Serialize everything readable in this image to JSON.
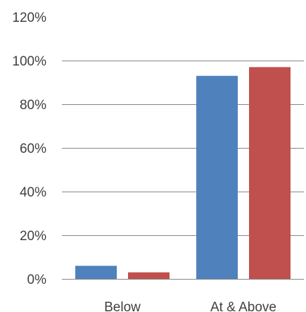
{
  "chart_data": {
    "type": "bar",
    "categories": [
      "Below",
      "At & Above"
    ],
    "series": [
      {
        "color": "#4F81BD",
        "values": [
          6,
          93
        ]
      },
      {
        "color": "#C0504D",
        "values": [
          3,
          97
        ]
      }
    ],
    "y_tick_labels": [
      "0%",
      "20%",
      "40%",
      "60%",
      "80%",
      "100%",
      "120%"
    ],
    "y_ticks": [
      0,
      20,
      40,
      60,
      80,
      100,
      120
    ],
    "ylim": [
      0,
      120
    ],
    "unit": "%",
    "grid": true,
    "legend": "none",
    "title": "",
    "xlabel": "",
    "ylabel": ""
  }
}
